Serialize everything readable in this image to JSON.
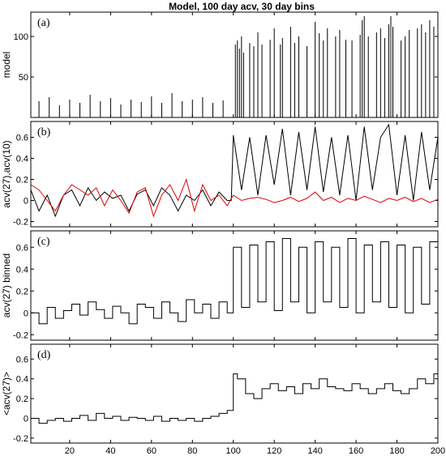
{
  "title": "Model, 100 day acv, 30 day bins",
  "colors": {
    "black": "#000000",
    "red": "#e00000"
  },
  "chart_data": [
    {
      "type": "bar",
      "panel_label": "(a)",
      "ylabel": "model",
      "xlim": [
        1,
        200
      ],
      "ylim": [
        0,
        130
      ],
      "yticks": [
        50,
        100
      ],
      "note": "dense spikes; values ~5-30 over days 1-99, large spikes ~75-125 from day 100",
      "series": [
        {
          "x": [
            5,
            10,
            15,
            20,
            25,
            30,
            35,
            40,
            45,
            50,
            55,
            60,
            65,
            70,
            75,
            80,
            85,
            90,
            95,
            101,
            102,
            103,
            104,
            105,
            108,
            110,
            112,
            114,
            118,
            120,
            123,
            124,
            128,
            130,
            132,
            136,
            140,
            142,
            144,
            146,
            150,
            152,
            155,
            158,
            162,
            163,
            164,
            166,
            170,
            172,
            174,
            176,
            177,
            178,
            182,
            184,
            186,
            190,
            192,
            194,
            196,
            198
          ],
          "values": [
            20,
            25,
            15,
            22,
            18,
            28,
            20,
            24,
            16,
            22,
            19,
            26,
            18,
            30,
            20,
            22,
            25,
            18,
            21,
            90,
            95,
            85,
            100,
            80,
            92,
            88,
            105,
            90,
            96,
            110,
            90,
            98,
            112,
            92,
            100,
            88,
            118,
            104,
            95,
            110,
            100,
            108,
            96,
            95,
            102,
            120,
            125,
            100,
            105,
            110,
            98,
            115,
            125,
            112,
            95,
            100,
            108,
            110,
            115,
            105,
            120,
            112
          ]
        }
      ]
    },
    {
      "type": "line",
      "panel_label": "(b)",
      "ylabel": "acv(27),acv(10)",
      "xlim": [
        1,
        200
      ],
      "ylim": [
        -0.25,
        0.75
      ],
      "yticks": [
        -0.2,
        0,
        0.2,
        0.4,
        0.6
      ],
      "series": [
        {
          "color": "black",
          "x": [
            1,
            5,
            9,
            13,
            17,
            21,
            25,
            29,
            33,
            37,
            41,
            45,
            49,
            53,
            57,
            61,
            65,
            69,
            73,
            77,
            81,
            85,
            89,
            93,
            97,
            99,
            100,
            104,
            108,
            112,
            116,
            120,
            124,
            128,
            132,
            136,
            140,
            144,
            148,
            152,
            156,
            160,
            164,
            168,
            172,
            176,
            180,
            184,
            188,
            192,
            196,
            200
          ],
          "values": [
            0.1,
            -0.1,
            0.05,
            -0.15,
            0.05,
            0.1,
            -0.05,
            0.12,
            0.0,
            0.08,
            0.02,
            0.05,
            -0.1,
            0.06,
            0.1,
            -0.05,
            0.12,
            0.05,
            -0.1,
            0.05,
            0.0,
            0.1,
            -0.05,
            0.08,
            0.0,
            0.0,
            0.62,
            0.1,
            0.6,
            0.05,
            0.62,
            0.15,
            0.68,
            0.05,
            0.65,
            0.1,
            0.7,
            0.08,
            0.6,
            0.05,
            0.62,
            0.0,
            0.7,
            0.1,
            0.6,
            0.72,
            0.05,
            0.62,
            0.0,
            0.65,
            0.1,
            0.6
          ]
        },
        {
          "color": "red",
          "x": [
            1,
            5,
            9,
            13,
            17,
            21,
            25,
            29,
            33,
            37,
            41,
            45,
            49,
            53,
            57,
            61,
            65,
            69,
            73,
            77,
            81,
            85,
            89,
            93,
            97,
            100,
            104,
            108,
            112,
            116,
            120,
            124,
            128,
            132,
            136,
            140,
            144,
            148,
            152,
            156,
            160,
            164,
            168,
            172,
            176,
            180,
            184,
            188,
            192,
            196,
            200
          ],
          "values": [
            0.15,
            0.1,
            0.0,
            -0.1,
            0.05,
            0.15,
            0.1,
            0.05,
            0.12,
            -0.05,
            0.1,
            0.0,
            -0.12,
            0.08,
            0.12,
            -0.15,
            0.05,
            0.15,
            0.0,
            0.2,
            -0.1,
            0.15,
            0.0,
            0.05,
            -0.05,
            0.05,
            0.0,
            0.02,
            0.03,
            0.01,
            -0.02,
            0.0,
            0.03,
            -0.01,
            0.02,
            0.08,
            0.0,
            0.03,
            -0.02,
            0.02,
            0.0,
            0.04,
            0.01,
            -0.02,
            0.02,
            0.0,
            0.03,
            -0.01,
            0.02,
            -0.02,
            0.01
          ]
        }
      ]
    },
    {
      "type": "line",
      "step": true,
      "panel_label": "(c)",
      "ylabel": "acv(27) binned",
      "xlim": [
        1,
        200
      ],
      "ylim": [
        -0.25,
        0.75
      ],
      "yticks": [
        -0.2,
        0,
        0.2,
        0.4,
        0.6
      ],
      "series": [
        {
          "color": "black",
          "x": [
            1,
            5,
            9,
            13,
            17,
            21,
            25,
            29,
            33,
            37,
            41,
            45,
            49,
            53,
            57,
            61,
            65,
            69,
            73,
            77,
            81,
            85,
            89,
            93,
            97,
            100,
            104,
            108,
            112,
            116,
            120,
            124,
            128,
            132,
            136,
            140,
            144,
            148,
            152,
            156,
            160,
            164,
            168,
            172,
            176,
            180,
            184,
            188,
            192,
            196,
            200
          ],
          "values": [
            0.0,
            -0.1,
            0.05,
            -0.05,
            0.02,
            0.08,
            -0.02,
            0.1,
            0.03,
            -0.05,
            0.06,
            0.0,
            -0.1,
            0.08,
            0.05,
            -0.05,
            0.1,
            0.0,
            -0.08,
            0.12,
            0.0,
            0.08,
            -0.05,
            0.1,
            0.0,
            0.6,
            0.05,
            0.62,
            0.1,
            0.65,
            0.02,
            0.68,
            0.1,
            0.6,
            0.0,
            0.65,
            0.1,
            0.6,
            0.05,
            0.68,
            0.0,
            0.62,
            0.1,
            0.65,
            0.05,
            0.62,
            0.0,
            0.6,
            0.08,
            0.65,
            0.1
          ]
        }
      ]
    },
    {
      "type": "line",
      "step": true,
      "panel_label": "(d)",
      "ylabel": "<acv(27)>",
      "xlim": [
        1,
        200
      ],
      "ylim": [
        -0.25,
        0.75
      ],
      "yticks": [
        -0.2,
        0,
        0.2,
        0.4,
        0.6
      ],
      "xticks": [
        20,
        40,
        60,
        80,
        100,
        120,
        140,
        160,
        180,
        200
      ],
      "series": [
        {
          "color": "black",
          "x": [
            1,
            5,
            9,
            13,
            17,
            21,
            25,
            29,
            33,
            37,
            41,
            45,
            49,
            53,
            57,
            61,
            65,
            69,
            73,
            77,
            81,
            85,
            89,
            93,
            97,
            100,
            102,
            106,
            110,
            114,
            118,
            122,
            126,
            130,
            134,
            138,
            142,
            146,
            150,
            154,
            158,
            162,
            166,
            170,
            174,
            178,
            182,
            186,
            190,
            194,
            198,
            200
          ],
          "values": [
            0.0,
            -0.05,
            -0.02,
            0.0,
            -0.03,
            0.0,
            0.03,
            -0.02,
            0.05,
            0.0,
            0.02,
            -0.02,
            0.01,
            0.0,
            -0.02,
            0.02,
            -0.03,
            0.0,
            -0.02,
            0.0,
            -0.03,
            0.0,
            0.02,
            0.05,
            0.08,
            0.45,
            0.4,
            0.25,
            0.2,
            0.3,
            0.35,
            0.28,
            0.32,
            0.25,
            0.35,
            0.3,
            0.4,
            0.32,
            0.3,
            0.28,
            0.35,
            0.3,
            0.25,
            0.3,
            0.35,
            0.28,
            0.25,
            0.3,
            0.4,
            0.35,
            0.45,
            0.42
          ]
        }
      ]
    }
  ]
}
